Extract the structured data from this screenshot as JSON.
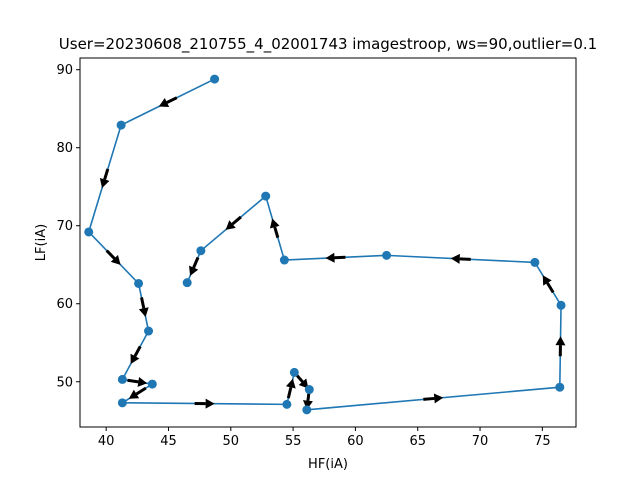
{
  "chart_data": {
    "type": "line",
    "title": "User=20230608_210755_4_02001743 imagestroop, ws=90,outlier=0.1",
    "xlabel": "HF(iA)",
    "ylabel": "LF(iA)",
    "xlim": [
      37.9,
      77.7
    ],
    "ylim": [
      44.2,
      91.5
    ],
    "x_ticks": [
      40,
      45,
      50,
      55,
      60,
      65,
      70,
      75
    ],
    "y_ticks": [
      50,
      60,
      70,
      80,
      90
    ],
    "grid": false,
    "line_color": "#1f77b4",
    "marker_color": "#1f77b4",
    "arrow_color": "#000000",
    "series": [
      {
        "x": [
          48.7,
          41.2,
          38.6,
          42.6,
          43.4,
          41.3,
          43.7,
          41.3,
          54.5,
          55.1,
          56.3,
          56.1,
          76.4,
          76.5,
          74.4,
          62.5,
          54.3,
          52.8,
          47.6,
          46.5
        ],
        "y": [
          88.8,
          82.9,
          69.2,
          62.6,
          56.5,
          50.3,
          49.7,
          47.3,
          47.1,
          51.2,
          49.0,
          46.4,
          49.3,
          59.8,
          65.3,
          66.2,
          65.6,
          73.8,
          66.8,
          62.7
        ]
      }
    ]
  }
}
